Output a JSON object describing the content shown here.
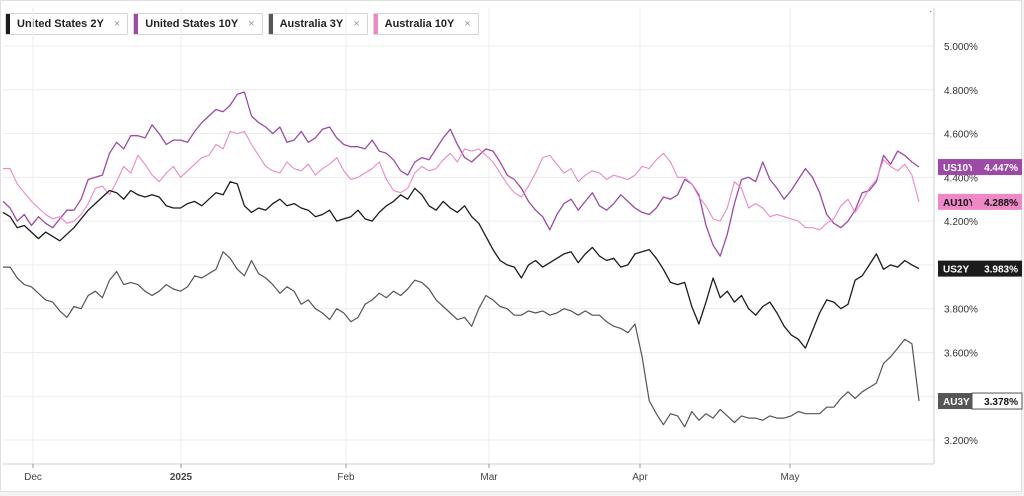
{
  "legend": [
    {
      "label": "United States 2Y",
      "color": "#1c1c1c"
    },
    {
      "label": "United States 10Y",
      "color": "#9c4aa6"
    },
    {
      "label": "Australia 3Y",
      "color": "#555555"
    },
    {
      "label": "Australia 10Y",
      "color": "#ee88c7"
    }
  ],
  "close_glyph": "×",
  "menu_glyph": "·",
  "chart_data": {
    "type": "line",
    "title": "",
    "xlabel": "",
    "ylabel": "",
    "x_ticks": [
      "Dec",
      "2025",
      "Feb",
      "Mar",
      "Apr",
      "May"
    ],
    "y_ticks": [
      "5.000%",
      "4.800%",
      "4.600%",
      "4.400%",
      "4.200%",
      "3.800%",
      "3.600%",
      "3.200%"
    ],
    "ylim": [
      3.1,
      5.2
    ],
    "grid": true,
    "x_points": 130,
    "series": [
      {
        "name": "United States 10Y",
        "tag": "US10Y",
        "last_value": "4.447%",
        "color": "#9c4aa6",
        "values": [
          4.29,
          4.26,
          4.2,
          4.23,
          4.18,
          4.22,
          4.19,
          4.17,
          4.21,
          4.25,
          4.25,
          4.3,
          4.39,
          4.4,
          4.41,
          4.51,
          4.56,
          4.53,
          4.59,
          4.59,
          4.58,
          4.64,
          4.6,
          4.55,
          4.57,
          4.57,
          4.56,
          4.61,
          4.65,
          4.68,
          4.71,
          4.7,
          4.73,
          4.78,
          4.79,
          4.68,
          4.65,
          4.63,
          4.6,
          4.63,
          4.56,
          4.57,
          4.61,
          4.56,
          4.58,
          4.62,
          4.63,
          4.58,
          4.55,
          4.54,
          4.54,
          4.53,
          4.57,
          4.52,
          4.51,
          4.48,
          4.43,
          4.41,
          4.47,
          4.49,
          4.48,
          4.53,
          4.58,
          4.62,
          4.55,
          4.49,
          4.47,
          4.5,
          4.53,
          4.52,
          4.47,
          4.41,
          4.39,
          4.35,
          4.29,
          4.25,
          4.22,
          4.16,
          4.23,
          4.28,
          4.3,
          4.25,
          4.29,
          4.33,
          4.27,
          4.25,
          4.28,
          4.32,
          4.29,
          4.26,
          4.24,
          4.23,
          4.26,
          4.31,
          4.3,
          4.32,
          4.39,
          4.37,
          4.32,
          4.18,
          4.09,
          4.04,
          4.14,
          4.28,
          4.39,
          4.4,
          4.38,
          4.47,
          4.39,
          4.35,
          4.3,
          4.34,
          4.39,
          4.44,
          4.4,
          4.33,
          4.23,
          4.19,
          4.17,
          4.2,
          4.25,
          4.33,
          4.34,
          4.38,
          4.5,
          4.46,
          4.52,
          4.5,
          4.47,
          4.447
        ]
      },
      {
        "name": "Australia 10Y",
        "tag": "AU10Y",
        "last_value": "4.288%",
        "color": "#ee88c7",
        "values": [
          4.44,
          4.44,
          4.37,
          4.33,
          4.29,
          4.26,
          4.23,
          4.21,
          4.22,
          4.19,
          4.2,
          4.23,
          4.28,
          4.35,
          4.36,
          4.32,
          4.38,
          4.45,
          4.42,
          4.5,
          4.46,
          4.41,
          4.38,
          4.42,
          4.45,
          4.4,
          4.43,
          4.46,
          4.49,
          4.5,
          4.55,
          4.53,
          4.61,
          4.6,
          4.61,
          4.55,
          4.5,
          4.45,
          4.43,
          4.42,
          4.47,
          4.44,
          4.43,
          4.46,
          4.41,
          4.44,
          4.46,
          4.49,
          4.43,
          4.39,
          4.4,
          4.42,
          4.44,
          4.47,
          4.39,
          4.34,
          4.33,
          4.35,
          4.42,
          4.45,
          4.43,
          4.44,
          4.48,
          4.51,
          4.47,
          4.53,
          4.52,
          4.53,
          4.5,
          4.47,
          4.42,
          4.37,
          4.33,
          4.31,
          4.36,
          4.42,
          4.49,
          4.5,
          4.46,
          4.42,
          4.44,
          4.38,
          4.41,
          4.43,
          4.42,
          4.39,
          4.41,
          4.4,
          4.39,
          4.41,
          4.45,
          4.44,
          4.48,
          4.51,
          4.47,
          4.4,
          4.4,
          4.37,
          4.31,
          4.27,
          4.21,
          4.2,
          4.26,
          4.38,
          4.35,
          4.26,
          4.28,
          4.26,
          4.22,
          4.23,
          4.22,
          4.21,
          4.2,
          4.17,
          4.17,
          4.16,
          4.19,
          4.21,
          4.27,
          4.3,
          4.24,
          4.29,
          4.35,
          4.39,
          4.48,
          4.45,
          4.43,
          4.46,
          4.41,
          4.288
        ]
      },
      {
        "name": "United States 2Y",
        "tag": "US2Y",
        "last_value": "3.983%",
        "color": "#1c1c1c",
        "values": [
          4.24,
          4.22,
          4.17,
          4.18,
          4.15,
          4.12,
          4.15,
          4.13,
          4.11,
          4.14,
          4.17,
          4.21,
          4.25,
          4.28,
          4.31,
          4.34,
          4.33,
          4.3,
          4.34,
          4.32,
          4.31,
          4.32,
          4.31,
          4.27,
          4.26,
          4.26,
          4.28,
          4.29,
          4.27,
          4.3,
          4.33,
          4.32,
          4.38,
          4.37,
          4.27,
          4.24,
          4.26,
          4.25,
          4.28,
          4.3,
          4.27,
          4.28,
          4.26,
          4.25,
          4.22,
          4.23,
          4.25,
          4.2,
          4.21,
          4.22,
          4.25,
          4.21,
          4.2,
          4.24,
          4.27,
          4.29,
          4.32,
          4.3,
          4.35,
          4.32,
          4.27,
          4.25,
          4.29,
          4.26,
          4.24,
          4.27,
          4.22,
          4.19,
          4.13,
          4.07,
          4.02,
          4.0,
          3.99,
          3.94,
          4.0,
          4.02,
          3.99,
          4.01,
          4.03,
          4.05,
          4.06,
          4.01,
          4.05,
          4.08,
          4.04,
          4.02,
          4.03,
          3.99,
          4.0,
          4.05,
          4.06,
          4.07,
          4.03,
          3.98,
          3.92,
          3.91,
          3.92,
          3.81,
          3.73,
          3.83,
          3.94,
          3.85,
          3.88,
          3.83,
          3.86,
          3.8,
          3.77,
          3.81,
          3.83,
          3.78,
          3.72,
          3.68,
          3.66,
          3.62,
          3.7,
          3.78,
          3.84,
          3.83,
          3.8,
          3.82,
          3.93,
          3.95,
          4.0,
          4.05,
          3.98,
          4.0,
          3.99,
          4.02,
          4.0,
          3.983
        ]
      },
      {
        "name": "Australia 3Y",
        "tag": "AU3Y",
        "last_value": "3.378%",
        "color": "#555555",
        "values": [
          3.99,
          3.99,
          3.94,
          3.91,
          3.9,
          3.87,
          3.84,
          3.83,
          3.79,
          3.76,
          3.81,
          3.8,
          3.86,
          3.88,
          3.85,
          3.93,
          3.97,
          3.91,
          3.92,
          3.91,
          3.88,
          3.86,
          3.88,
          3.91,
          3.89,
          3.88,
          3.9,
          3.95,
          3.94,
          3.96,
          3.98,
          4.06,
          4.03,
          3.98,
          3.95,
          4.02,
          3.96,
          3.94,
          3.91,
          3.87,
          3.9,
          3.88,
          3.82,
          3.84,
          3.8,
          3.78,
          3.75,
          3.8,
          3.78,
          3.74,
          3.76,
          3.82,
          3.84,
          3.87,
          3.85,
          3.88,
          3.86,
          3.89,
          3.93,
          3.92,
          3.89,
          3.84,
          3.81,
          3.78,
          3.75,
          3.76,
          3.72,
          3.8,
          3.86,
          3.84,
          3.81,
          3.8,
          3.77,
          3.77,
          3.79,
          3.78,
          3.79,
          3.77,
          3.78,
          3.8,
          3.79,
          3.77,
          3.79,
          3.77,
          3.77,
          3.74,
          3.72,
          3.71,
          3.69,
          3.73,
          3.58,
          3.38,
          3.32,
          3.27,
          3.32,
          3.31,
          3.26,
          3.33,
          3.29,
          3.32,
          3.3,
          3.34,
          3.31,
          3.28,
          3.31,
          3.3,
          3.3,
          3.29,
          3.31,
          3.3,
          3.3,
          3.31,
          3.33,
          3.32,
          3.32,
          3.32,
          3.35,
          3.35,
          3.39,
          3.42,
          3.39,
          3.42,
          3.44,
          3.46,
          3.55,
          3.58,
          3.62,
          3.66,
          3.64,
          3.378
        ]
      }
    ]
  }
}
